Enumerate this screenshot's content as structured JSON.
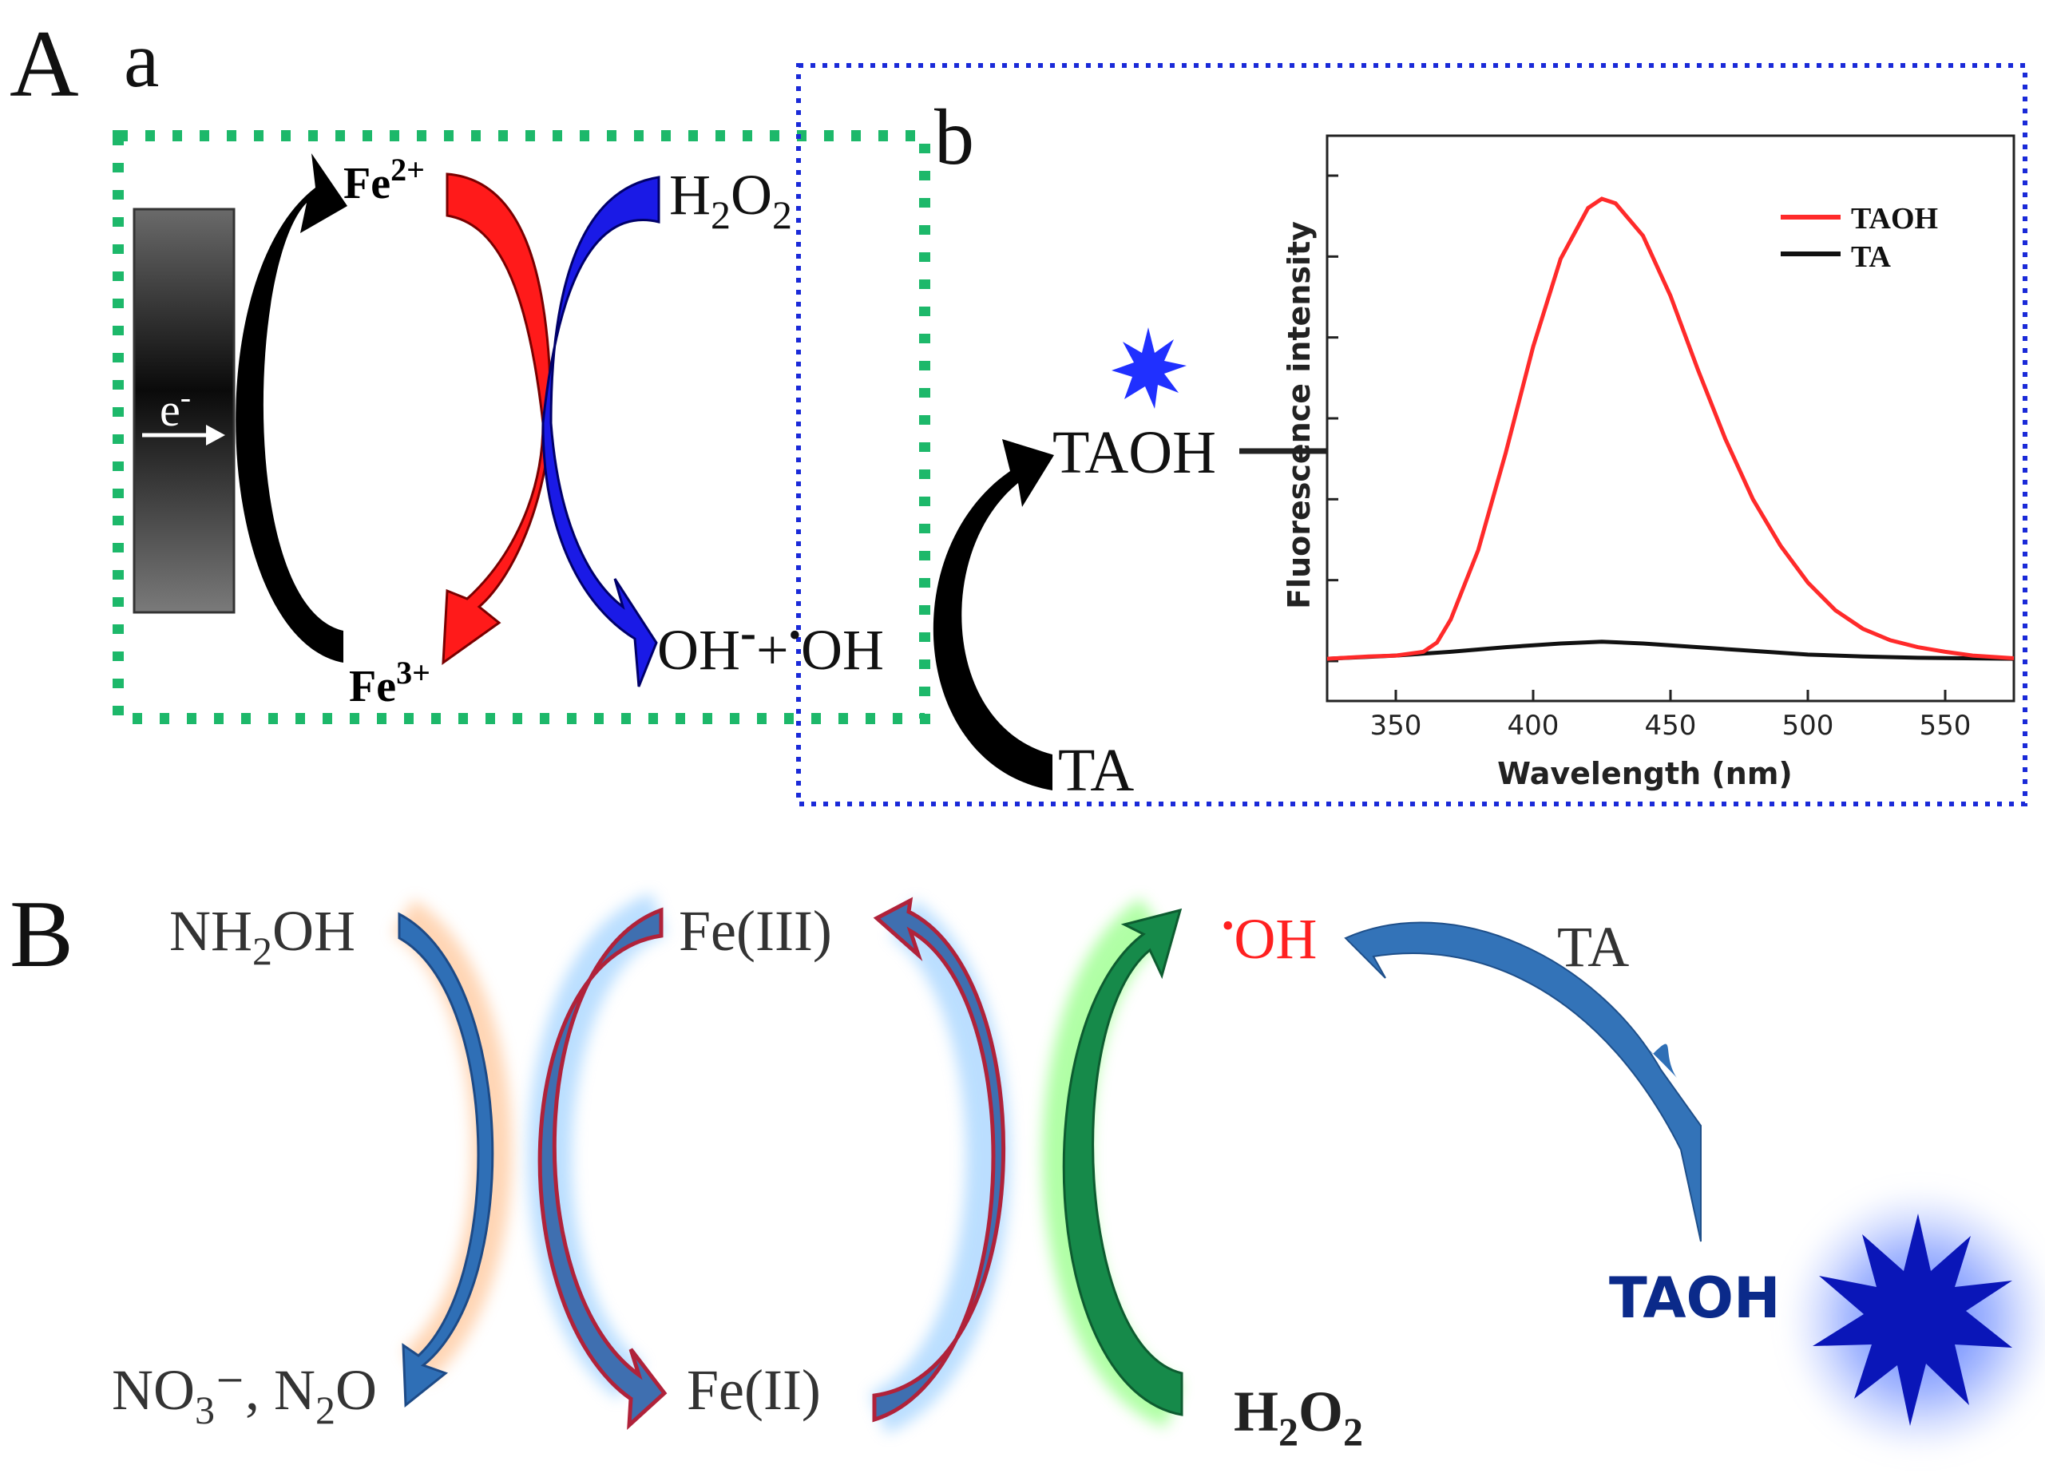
{
  "panel_A": {
    "label": "A",
    "sub_a": {
      "label": "a",
      "electron": {
        "base": "e",
        "sup": "-"
      },
      "fe2": {
        "base": "Fe",
        "sup": "2+"
      },
      "fe3": {
        "base": "Fe",
        "sup": "3+"
      },
      "h2o2": {
        "h": "H",
        "sub1": "2",
        "o": "O",
        "sub2": "2"
      },
      "oh_products": {
        "oh": "OH",
        "minus": "-",
        "plus": "+",
        "dot": "•",
        "oh2": "OH"
      }
    },
    "sub_b": {
      "label": "b",
      "taoh": "TAOH",
      "ta": "TA"
    },
    "chart_data": {
      "type": "line",
      "title": "",
      "xlabel": "Wavelength (nm)",
      "ylabel": "Fluorescence intensity",
      "xlim": [
        325,
        575
      ],
      "ylim": [
        0,
        1.05
      ],
      "xticks": [
        "350",
        "400",
        "450",
        "500",
        "550"
      ],
      "legend": {
        "position": "top-right",
        "entries": [
          "TAOH",
          "TA"
        ]
      },
      "colors": {
        "TAOH": "#ff2a2a",
        "TA": "#111111"
      },
      "series": [
        {
          "name": "TAOH",
          "x": [
            325,
            340,
            350,
            360,
            365,
            370,
            380,
            390,
            400,
            410,
            420,
            425,
            430,
            440,
            450,
            460,
            470,
            480,
            490,
            500,
            510,
            520,
            530,
            540,
            550,
            560,
            575
          ],
          "y": [
            0.005,
            0.01,
            0.012,
            0.02,
            0.04,
            0.09,
            0.24,
            0.45,
            0.68,
            0.87,
            0.98,
            1.0,
            0.99,
            0.92,
            0.79,
            0.63,
            0.48,
            0.35,
            0.25,
            0.17,
            0.11,
            0.07,
            0.045,
            0.03,
            0.02,
            0.012,
            0.006
          ]
        },
        {
          "name": "TA",
          "x": [
            325,
            350,
            370,
            390,
            410,
            425,
            440,
            460,
            480,
            500,
            520,
            540,
            575
          ],
          "y": [
            0.005,
            0.012,
            0.02,
            0.03,
            0.038,
            0.042,
            0.038,
            0.03,
            0.022,
            0.014,
            0.01,
            0.007,
            0.005
          ]
        }
      ]
    }
  },
  "panel_B": {
    "label": "B",
    "nh2oh": {
      "a": "NH",
      "sub": "2",
      "b": "OH"
    },
    "no3_n2o": {
      "a": "NO",
      "sub1": "3",
      "b": "⁻, N",
      "sub2": "2",
      "c": "O"
    },
    "fe3": "Fe(III)",
    "fe2": "Fe(II)",
    "oh_radical": {
      "dot": "•",
      "oh": "OH"
    },
    "ta": "TA",
    "h2o2": {
      "h": "H",
      "sub1": "2",
      "o": "O",
      "sub2": "2"
    },
    "taoh": "TAOH"
  }
}
